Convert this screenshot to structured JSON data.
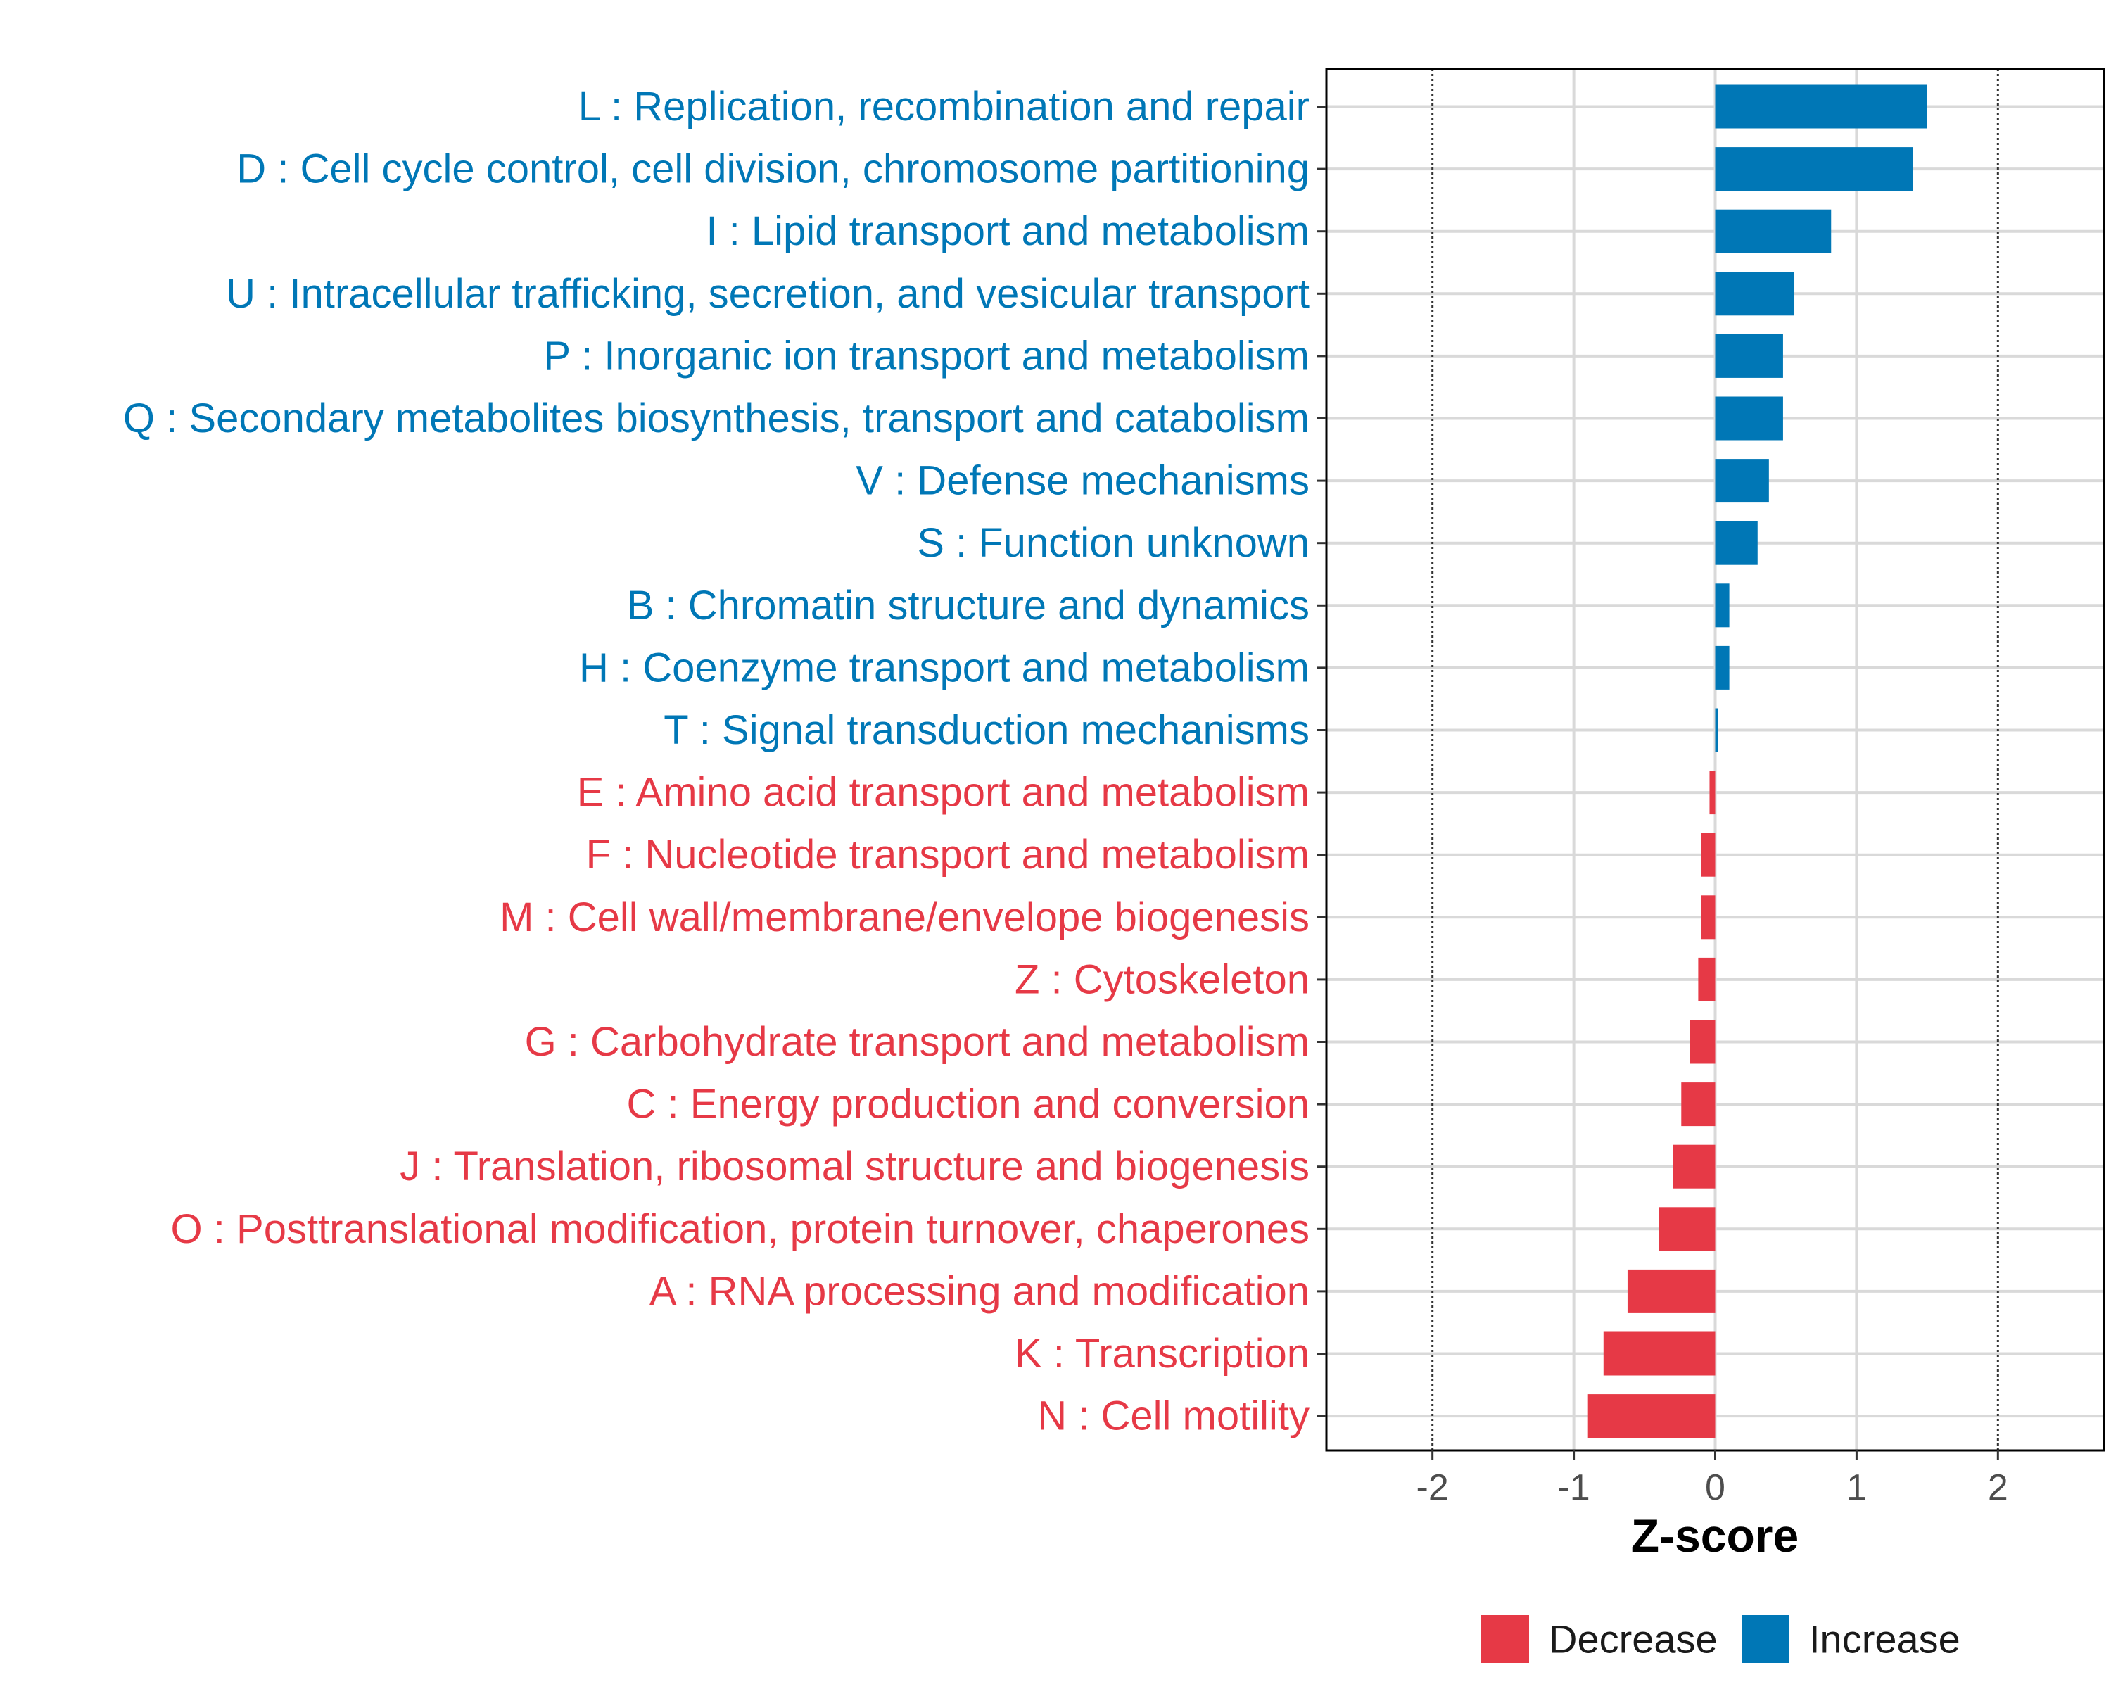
{
  "chart_data": {
    "type": "bar",
    "orientation": "horizontal",
    "xlabel": "Z-score",
    "ylabel": "",
    "xlim": [
      -2.75,
      2.75
    ],
    "xticks": [
      -2,
      -1,
      0,
      1,
      2
    ],
    "reference_lines": [
      -2,
      2
    ],
    "grid": true,
    "legend_position": "bottom",
    "colors": {
      "Decrease": "#e63946",
      "Increase": "#0077b6",
      "grid": "#d9d9d9",
      "frame": "#000000"
    },
    "legend": [
      {
        "name": "Decrease",
        "color": "#e63946"
      },
      {
        "name": "Increase",
        "color": "#0077b6"
      }
    ],
    "categories": [
      "L : Replication, recombination and repair",
      "D : Cell cycle control, cell division, chromosome partitioning",
      "I : Lipid transport and metabolism",
      "U : Intracellular trafficking, secretion, and vesicular transport",
      "P : Inorganic ion transport and metabolism",
      "Q : Secondary metabolites biosynthesis, transport and catabolism",
      "V : Defense mechanisms",
      "S : Function unknown",
      "B : Chromatin structure and dynamics",
      "H : Coenzyme transport and metabolism",
      "T : Signal transduction mechanisms",
      "E : Amino acid transport and metabolism",
      "F : Nucleotide transport and metabolism",
      "M : Cell wall/membrane/envelope biogenesis",
      "Z : Cytoskeleton",
      "G : Carbohydrate transport and metabolism",
      "C : Energy production and conversion",
      "J : Translation, ribosomal structure and biogenesis",
      "O : Posttranslational modification, protein turnover, chaperones",
      "A : RNA processing and modification",
      "K : Transcription",
      "N : Cell motility"
    ],
    "values": [
      1.5,
      1.4,
      0.82,
      0.56,
      0.48,
      0.48,
      0.38,
      0.3,
      0.1,
      0.1,
      0.02,
      -0.04,
      -0.1,
      -0.1,
      -0.12,
      -0.18,
      -0.24,
      -0.3,
      -0.4,
      -0.62,
      -0.79,
      -0.9
    ],
    "group": [
      "Increase",
      "Increase",
      "Increase",
      "Increase",
      "Increase",
      "Increase",
      "Increase",
      "Increase",
      "Increase",
      "Increase",
      "Increase",
      "Decrease",
      "Decrease",
      "Decrease",
      "Decrease",
      "Decrease",
      "Decrease",
      "Decrease",
      "Decrease",
      "Decrease",
      "Decrease",
      "Decrease"
    ]
  }
}
